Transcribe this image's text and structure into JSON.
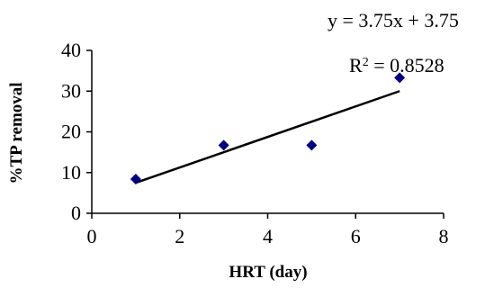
{
  "chart_data": {
    "type": "scatter",
    "xlabel": "HRT (day)",
    "ylabel": "%TP removal",
    "xlim": [
      0,
      8
    ],
    "ylim": [
      0,
      40
    ],
    "xticks": [
      0,
      2,
      4,
      6,
      8
    ],
    "yticks": [
      0,
      10,
      20,
      30,
      40
    ],
    "x_tick_labels": [
      "0",
      "2",
      "4",
      "6",
      "8"
    ],
    "y_tick_labels": [
      "0",
      "10",
      "20",
      "30",
      "40"
    ],
    "points": [
      {
        "x": 1,
        "y": 8.4
      },
      {
        "x": 3,
        "y": 16.7
      },
      {
        "x": 5,
        "y": 16.7
      },
      {
        "x": 7,
        "y": 33.3
      }
    ],
    "marker": "diamond",
    "marker_color": "#00007f",
    "trendline": {
      "slope": 3.75,
      "intercept": 3.75,
      "x_range": [
        1,
        7
      ],
      "color": "#000000",
      "equation_label": "y = 3.75x + 3.75",
      "r2_prefix": "R",
      "r2_exponent": "2",
      "r2_value": " = 0.8528"
    },
    "grid": false,
    "legend": "none"
  }
}
